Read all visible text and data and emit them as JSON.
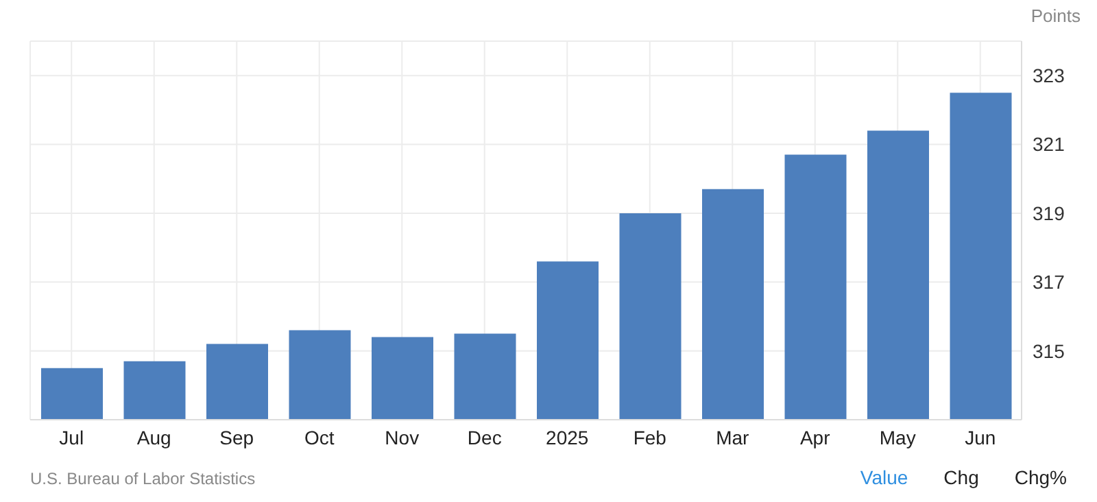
{
  "chart_data": {
    "type": "bar",
    "ylabel": "Points",
    "categories": [
      "Jul",
      "Aug",
      "Sep",
      "Oct",
      "Nov",
      "Dec",
      "2025",
      "Feb",
      "Mar",
      "Apr",
      "May",
      "Jun"
    ],
    "values": [
      314.5,
      314.7,
      315.2,
      315.6,
      315.4,
      315.5,
      317.6,
      319.0,
      319.7,
      320.7,
      321.4,
      322.5
    ],
    "color": "#4d7fbd",
    "ylim": [
      313,
      324
    ],
    "yticks": [
      315,
      317,
      319,
      321,
      323
    ],
    "grid": true,
    "annotations": [
      "U.S. Bureau of Labor Statistics",
      "Value",
      "Chg",
      "Chg%"
    ]
  }
}
